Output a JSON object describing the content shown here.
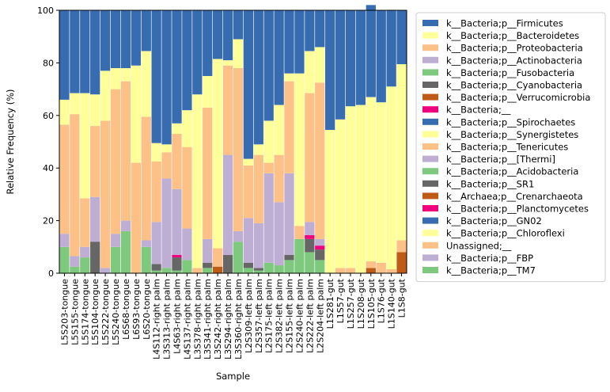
{
  "chart_data": {
    "type": "bar",
    "stacked": true,
    "title": "",
    "xlabel": "Sample",
    "ylabel": "Relative Frequency (%)",
    "ylim": [
      0,
      100
    ],
    "yticks": [
      0,
      20,
      40,
      60,
      80,
      100
    ],
    "grid": false,
    "legend_position": "right-outside",
    "categories": [
      "L5S203-tongue",
      "L5S155-tongue",
      "L5S174-tongue",
      "L5S104-tongue",
      "L5S222-tongue",
      "L5S240-tongue",
      "L6S68-tongue",
      "L6S93-tongue",
      "L6S20-tongue",
      "L4S112-right palm",
      "L3S313-right palm",
      "L4S63-right palm",
      "L4S137-right palm",
      "L3S378-right palm",
      "L3S341-right palm",
      "L3S242-right palm",
      "L3S294-right palm",
      "L3S360-right palm",
      "L2S309-left palm",
      "L2S357-left palm",
      "L2S175-left palm",
      "L2S382-left palm",
      "L2S155-left palm",
      "L2S240-left palm",
      "L2S222-left palm",
      "L2S204-left palm",
      "L1S281-gut",
      "L1S57-gut",
      "L1S257-gut",
      "L1S208-gut",
      "L1S105-gut",
      "L1S76-gut",
      "L1S140-gut",
      "L1S8-gut"
    ],
    "series": [
      {
        "name": "k__Bacteria;p__TM7",
        "color": "#7fc97f",
        "values": [
          10,
          2.5,
          6,
          0,
          0,
          10,
          16,
          0,
          10,
          1,
          2,
          1,
          5,
          0,
          2,
          0,
          0,
          12,
          2,
          1,
          4,
          3,
          5,
          13,
          8,
          5,
          0,
          0,
          0,
          0,
          0,
          0,
          0,
          0
        ]
      },
      {
        "name": "k__Bacteria;p__SR1",
        "color": "#666666",
        "values": [
          0,
          0,
          0,
          12,
          0,
          0,
          0,
          0,
          0,
          2.5,
          0,
          5,
          0,
          0,
          2,
          0,
          7,
          0,
          2,
          1,
          0,
          0,
          2,
          0,
          5,
          4,
          0,
          0,
          0,
          0,
          0,
          0,
          0,
          0
        ]
      },
      {
        "name": "k__Bacteria;p__Verrucomicrobia",
        "color": "#bf5b17",
        "values": [
          0,
          0,
          0,
          0,
          0,
          0,
          0,
          0,
          0,
          0,
          0,
          0,
          0,
          0,
          0,
          2.5,
          0,
          0,
          0,
          0,
          0,
          0,
          0,
          0,
          0,
          0,
          0,
          0,
          0,
          0,
          2,
          0,
          0,
          8
        ]
      },
      {
        "name": "k__Bacteria;p__Planctomycetes",
        "color": "#f0027f",
        "values": [
          0,
          0,
          0,
          0,
          0,
          0,
          0,
          0,
          0,
          0,
          0,
          1,
          0,
          0,
          0,
          0,
          0,
          0,
          0,
          0,
          0,
          0,
          0,
          0,
          1.5,
          1.5,
          0,
          0,
          0,
          0,
          0,
          0,
          0,
          0
        ]
      },
      {
        "name": "k__Bacteria;p__Actinobacteria",
        "color": "#beaed4",
        "values": [
          5,
          4,
          4,
          17,
          2,
          5,
          4,
          0,
          2.5,
          16,
          34,
          25,
          12,
          0,
          9,
          0,
          38,
          4,
          17,
          17,
          34,
          24,
          31,
          0,
          5,
          2.5,
          0,
          0,
          0,
          0,
          0,
          0,
          0,
          0
        ]
      },
      {
        "name": "k__Bacteria;p__Proteobacteria",
        "color": "#fdc086",
        "values": [
          41.5,
          54,
          18.5,
          27,
          56,
          55,
          53,
          42,
          47,
          23,
          10,
          21,
          31,
          2,
          50,
          7,
          34,
          62,
          20,
          26,
          4,
          18,
          35,
          5,
          49,
          59.5,
          0,
          2,
          2,
          0,
          2.5,
          4,
          1.5,
          4.5
        ]
      },
      {
        "name": "k__Bacteria;p__Bacteroidetes",
        "color": "#ffff99",
        "values": [
          9.5,
          8,
          40,
          12,
          19,
          8,
          5,
          37,
          25,
          7,
          3,
          4,
          14,
          66,
          12,
          72,
          2,
          11,
          2.5,
          4,
          16,
          19,
          3,
          58,
          16,
          13.5,
          54.5,
          56.5,
          61.5,
          64,
          62.5,
          61,
          69.5,
          67
        ]
      },
      {
        "name": "k__Bacteria;p__Firmicutes",
        "color": "#386cb0",
        "values": [
          34,
          31.5,
          31.5,
          32,
          23,
          22,
          22,
          21,
          15.5,
          50.5,
          51,
          43,
          38,
          32,
          25,
          18.5,
          19,
          11,
          56.5,
          51,
          42,
          36,
          24,
          24,
          15.5,
          14,
          45.5,
          41.5,
          36.5,
          36,
          35,
          35,
          29,
          20.5
        ]
      }
    ],
    "legend": [
      {
        "label": "k__Bacteria;p__Firmicutes",
        "color": "#386cb0"
      },
      {
        "label": "k__Bacteria;p__Bacteroidetes",
        "color": "#ffff99"
      },
      {
        "label": "k__Bacteria;p__Proteobacteria",
        "color": "#fdc086"
      },
      {
        "label": "k__Bacteria;p__Actinobacteria",
        "color": "#beaed4"
      },
      {
        "label": "k__Bacteria;p__Fusobacteria",
        "color": "#7fc97f"
      },
      {
        "label": "k__Bacteria;p__Cyanobacteria",
        "color": "#666666"
      },
      {
        "label": "k__Bacteria;p__Verrucomicrobia",
        "color": "#bf5b17"
      },
      {
        "label": "k__Bacteria;__",
        "color": "#f0027f"
      },
      {
        "label": "k__Bacteria;p__Spirochaetes",
        "color": "#386cb0"
      },
      {
        "label": "k__Bacteria;p__Synergistetes",
        "color": "#ffff99"
      },
      {
        "label": "k__Bacteria;p__Tenericutes",
        "color": "#fdc086"
      },
      {
        "label": "k__Bacteria;p__[Thermi]",
        "color": "#beaed4"
      },
      {
        "label": "k__Bacteria;p__Acidobacteria",
        "color": "#7fc97f"
      },
      {
        "label": "k__Bacteria;p__SR1",
        "color": "#666666"
      },
      {
        "label": "k__Archaea;p__Crenarchaeota",
        "color": "#bf5b17"
      },
      {
        "label": "k__Bacteria;p__Planctomycetes",
        "color": "#f0027f"
      },
      {
        "label": "k__Bacteria;p__GN02",
        "color": "#386cb0"
      },
      {
        "label": "k__Bacteria;p__Chloroflexi",
        "color": "#ffff99"
      },
      {
        "label": "Unassigned;__",
        "color": "#fdc086"
      },
      {
        "label": "k__Bacteria;p__FBP",
        "color": "#beaed4"
      },
      {
        "label": "k__Bacteria;p__TM7",
        "color": "#7fc97f"
      }
    ]
  }
}
